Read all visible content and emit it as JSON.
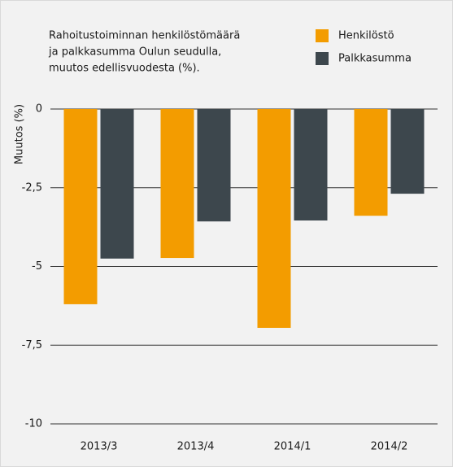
{
  "chart_data": {
    "type": "bar",
    "title": [
      "Rahoitustoiminnan henkilöstömäärä",
      "ja palkkasumma Oulun seudulla,",
      "muutos edellisvuodesta (%)."
    ],
    "y_label": "Muutos (%)",
    "categories": [
      "2013/3",
      "2013/4",
      "2014/1",
      "2014/2"
    ],
    "series": [
      {
        "name": "Henkilöstö",
        "color": "#f39c00",
        "values": [
          -6.2,
          -4.73,
          -6.95,
          -3.39
        ]
      },
      {
        "name": "Palkkasumma",
        "color": "#3d474d",
        "values": [
          -4.75,
          -3.57,
          -3.54,
          -2.69
        ]
      }
    ],
    "ylim": [
      -10,
      0
    ],
    "yticks": [
      0,
      {
        "value": -2.5,
        "label": "-2,5"
      },
      -5,
      {
        "value": -7.5,
        "label": "-7,5"
      },
      -10
    ],
    "grid": true
  }
}
